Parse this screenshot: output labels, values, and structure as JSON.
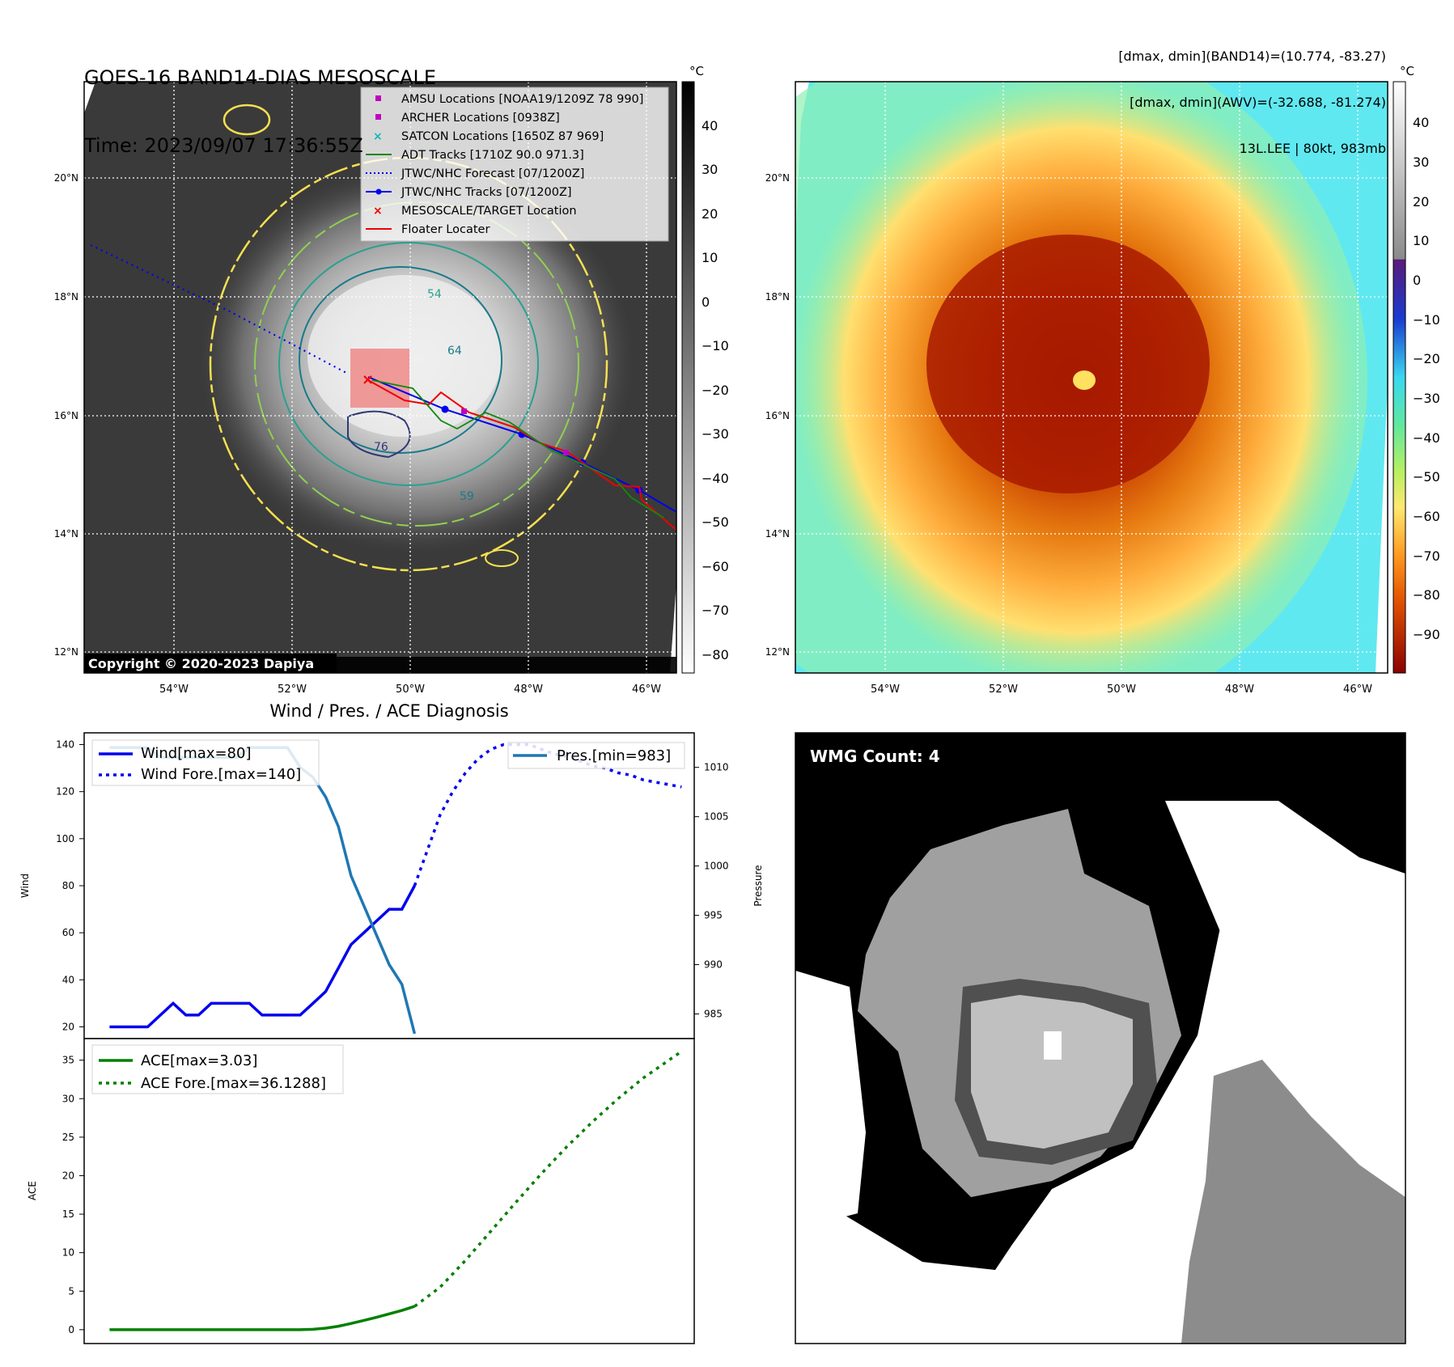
{
  "header": {
    "title_line1": "GOES-16 BAND14-DIAS MESOSCALE",
    "title_line2": "Time: 2023/09/07 17:36:55Z",
    "meta_line1": "[dmax, dmin](BAND14)=(10.774, -83.27)",
    "meta_line2": "[dmax, dmin](AWV)=(-32.688, -81.274)",
    "meta_line3": "13L.LEE | 80kt, 983mb"
  },
  "map_axes": {
    "lat_labels": [
      "20°N",
      "18°N",
      "16°N",
      "14°N",
      "12°N"
    ],
    "lon_labels": [
      "54°W",
      "52°W",
      "50°W",
      "48°W",
      "46°W"
    ]
  },
  "ir_panel": {
    "copyright": "Copyright © 2020-2023 Dapiya",
    "colorbar_unit": "°C",
    "colorbar_ticks": [
      "40",
      "30",
      "20",
      "10",
      "0",
      "−10",
      "−20",
      "−30",
      "−40",
      "−50",
      "−60",
      "−70",
      "−80"
    ],
    "contour_labels": [
      "54",
      "64",
      "76",
      "59"
    ],
    "legend": [
      {
        "label": "AMSU Locations [NOAA19/1209Z 78 990]",
        "color": "#c000c0",
        "marker": "square"
      },
      {
        "label": "ARCHER Locations [0938Z]",
        "color": "#c000c0",
        "marker": "square"
      },
      {
        "label": "SATCON Locations [1650Z 87 969]",
        "color": "#10b8b8",
        "marker": "x"
      },
      {
        "label": "ADT Tracks [1710Z 90.0 971.3]",
        "color": "#118811",
        "marker": "line"
      },
      {
        "label": "JTWC/NHC Forecast [07/1200Z]",
        "color": "#0000ee",
        "marker": "dotted-line"
      },
      {
        "label": "JTWC/NHC Tracks [07/1200Z]",
        "color": "#0000ee",
        "marker": "line-dot"
      },
      {
        "label": "MESOSCALE/TARGET Location",
        "color": "#ee0000",
        "marker": "x"
      },
      {
        "label": "Floater Locater",
        "color": "#ee0000",
        "marker": "line"
      }
    ]
  },
  "enhanced_panel": {
    "colorbar_unit": "°C",
    "colorbar_ticks": [
      "40",
      "30",
      "20",
      "10",
      "0",
      "−10",
      "−20",
      "−30",
      "−40",
      "−50",
      "−60",
      "−70",
      "−80",
      "−90"
    ]
  },
  "diagnosis_panel": {
    "title": "Wind / Pres. / ACE Diagnosis",
    "wind_ylabel": "Wind",
    "pressure_ylabel": "Pressure",
    "ace_ylabel": "ACE",
    "legend_wind": [
      "Wind[max=80]",
      "Wind Fore.[max=140]"
    ],
    "legend_pres": "Pres.[min=983]",
    "legend_ace": [
      "ACE[max=3.03]",
      "ACE Fore.[max=36.1288]"
    ]
  },
  "wmg_panel": {
    "label": "WMG Count: 4"
  },
  "chart_data": [
    {
      "type": "line",
      "title": "Wind / Pres. / ACE Diagnosis",
      "ylabel": "Wind",
      "ylim": [
        15,
        145
      ],
      "xlim": [
        -2,
        46
      ],
      "yticks": [
        20,
        40,
        60,
        80,
        100,
        120,
        140
      ],
      "series": [
        {
          "name": "Wind[max=80]",
          "color": "#0000ee",
          "style": "solid",
          "x": [
            0,
            1,
            2,
            3,
            4,
            5,
            6,
            7,
            8,
            9,
            10,
            11,
            12,
            13,
            14,
            15,
            16,
            17,
            18,
            19,
            20,
            21,
            22,
            23,
            24
          ],
          "y": [
            20,
            20,
            20,
            20,
            25,
            30,
            25,
            25,
            30,
            30,
            30,
            30,
            25,
            25,
            25,
            25,
            30,
            35,
            45,
            55,
            60,
            65,
            70,
            70,
            80
          ]
        },
        {
          "name": "Wind Fore.[max=140]",
          "color": "#0000ee",
          "style": "dotted",
          "x": [
            24,
            25,
            26,
            27,
            28,
            29,
            30,
            31,
            32,
            33,
            34,
            35,
            36,
            37,
            38,
            39,
            40,
            41,
            42,
            43,
            44,
            45
          ],
          "y": [
            80,
            95,
            110,
            120,
            128,
            134,
            138,
            140,
            140,
            140,
            138,
            136,
            135,
            133,
            131,
            130,
            128,
            127,
            125,
            124,
            123,
            122
          ]
        }
      ],
      "y2label": "Pressure",
      "y2lim": [
        982.5,
        1013.5
      ],
      "y2ticks": [
        985,
        990,
        995,
        1000,
        1005,
        1010
      ],
      "series_right": [
        {
          "name": "Pres.[min=983]",
          "color": "#1f77b4",
          "style": "solid",
          "x": [
            0,
            1,
            2,
            3,
            4,
            5,
            6,
            7,
            8,
            9,
            10,
            11,
            12,
            13,
            14,
            15,
            16,
            17,
            18,
            19,
            20,
            21,
            22,
            23,
            24
          ],
          "y": [
            1012,
            1012,
            1012,
            1012,
            1011,
            1011,
            1011,
            1011,
            1011,
            1011,
            1011,
            1012,
            1012,
            1012,
            1012,
            1010,
            1009,
            1007,
            1004,
            999,
            996,
            993,
            990,
            988,
            983
          ]
        }
      ]
    },
    {
      "type": "line",
      "ylabel": "ACE",
      "ylim": [
        -1.8,
        37.8
      ],
      "xlim": [
        -2,
        46
      ],
      "yticks": [
        0,
        5,
        10,
        15,
        20,
        25,
        30,
        35
      ],
      "series": [
        {
          "name": "ACE[max=3.03]",
          "color": "#008000",
          "style": "solid",
          "x": [
            0,
            2,
            4,
            6,
            8,
            10,
            12,
            14,
            15,
            16,
            17,
            18,
            19,
            20,
            21,
            22,
            23,
            24
          ],
          "y": [
            0,
            0,
            0,
            0,
            0,
            0,
            0,
            0,
            0,
            0.05,
            0.2,
            0.45,
            0.8,
            1.2,
            1.6,
            2.05,
            2.5,
            3.03
          ]
        },
        {
          "name": "ACE Fore.[max=36.1288]",
          "color": "#008000",
          "style": "dotted",
          "x": [
            24,
            26,
            28,
            30,
            32,
            34,
            36,
            38,
            40,
            42,
            44,
            45
          ],
          "y": [
            3.03,
            5.5,
            9.0,
            12.8,
            16.6,
            20.3,
            23.8,
            27.0,
            30.0,
            32.7,
            35.0,
            36.13
          ]
        }
      ]
    }
  ]
}
